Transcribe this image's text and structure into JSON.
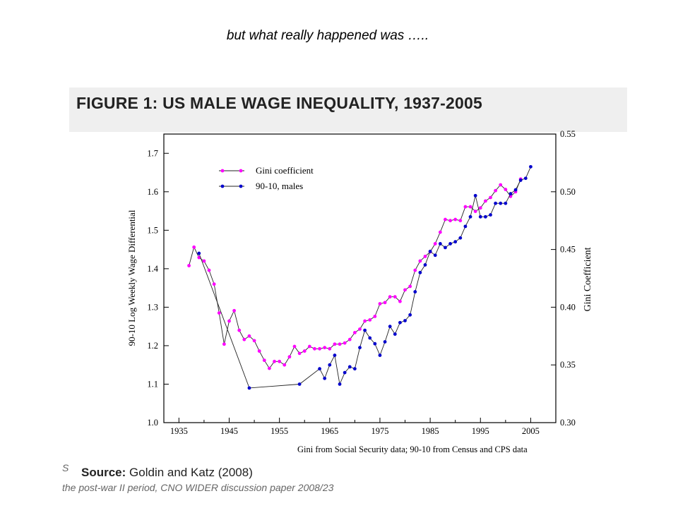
{
  "slide": {
    "title": "but what really happened was …..",
    "figure_title": "FIGURE 1: US MALE WAGE INEQUALITY, 1937-2005",
    "source_label": "Source:",
    "source_text": "Goldin and Katz (2008)",
    "background_text_1": "S",
    "background_text_2": "the post-war II period, CNO WIDER discussion paper 2008/23"
  },
  "chart_data": {
    "type": "line",
    "xlabel": "Gini from Social Security data; 90-10 from Census and CPS data",
    "ylabel_left": "90-10 Log Weekly Wage Differential",
    "ylabel_right": "Gini Coefficient",
    "xlim": [
      1932,
      2010
    ],
    "ylim_left": [
      1.0,
      1.75
    ],
    "ylim_right": [
      0.3,
      0.55
    ],
    "x_ticks": [
      1935,
      1945,
      1955,
      1965,
      1975,
      1985,
      1995,
      2005
    ],
    "y_ticks_left": [
      1.0,
      1.1,
      1.2,
      1.3,
      1.4,
      1.5,
      1.6,
      1.7
    ],
    "y_ticks_right": [
      0.3,
      0.35,
      0.4,
      0.45,
      0.5,
      0.55
    ],
    "legend_position": "top-left",
    "series": [
      {
        "name": "Gini coefficient",
        "axis": "right",
        "color": "#ff00ff",
        "x": [
          1937,
          1938,
          1939,
          1940,
          1941,
          1942,
          1943,
          1944,
          1945,
          1946,
          1947,
          1948,
          1949,
          1950,
          1951,
          1952,
          1953,
          1954,
          1955,
          1956,
          1957,
          1958,
          1959,
          1960,
          1961,
          1962,
          1963,
          1964,
          1965,
          1966,
          1967,
          1968,
          1969,
          1970,
          1971,
          1972,
          1973,
          1974,
          1975,
          1976,
          1977,
          1978,
          1979,
          1980,
          1981,
          1982,
          1983,
          1984,
          1985,
          1986,
          1987,
          1988,
          1989,
          1990,
          1991,
          1992,
          1993,
          1994,
          1995,
          1996,
          1997,
          1998,
          1999,
          2000,
          2001,
          2002,
          2003
        ],
        "values": [
          0.436,
          0.452,
          0.443,
          0.44,
          0.432,
          0.42,
          0.395,
          0.368,
          0.388,
          0.397,
          0.38,
          0.372,
          0.375,
          0.371,
          0.362,
          0.354,
          0.347,
          0.353,
          0.353,
          0.35,
          0.357,
          0.366,
          0.36,
          0.362,
          0.366,
          0.364,
          0.364,
          0.365,
          0.364,
          0.368,
          0.368,
          0.369,
          0.372,
          0.378,
          0.381,
          0.388,
          0.389,
          0.392,
          0.403,
          0.404,
          0.409,
          0.409,
          0.405,
          0.415,
          0.418,
          0.432,
          0.44,
          0.444,
          0.448,
          0.455,
          0.465,
          0.476,
          0.475,
          0.476,
          0.475,
          0.487,
          0.487,
          0.483,
          0.486,
          0.492,
          0.495,
          0.501,
          0.506,
          0.502,
          0.496,
          0.5,
          0.511
        ]
      },
      {
        "name": "90-10, males",
        "axis": "left",
        "color": "#0000cc",
        "x": [
          1939,
          1949,
          1959,
          1963,
          1964,
          1965,
          1966,
          1967,
          1968,
          1969,
          1970,
          1971,
          1972,
          1973,
          1974,
          1975,
          1976,
          1977,
          1978,
          1979,
          1980,
          1981,
          1982,
          1983,
          1984,
          1985,
          1986,
          1987,
          1988,
          1989,
          1990,
          1991,
          1992,
          1993,
          1994,
          1995,
          1996,
          1997,
          1998,
          1999,
          2000,
          2001,
          2002,
          2003,
          2004,
          2005
        ],
        "values": [
          1.44,
          1.09,
          1.1,
          1.14,
          1.115,
          1.15,
          1.175,
          1.1,
          1.13,
          1.145,
          1.14,
          1.195,
          1.24,
          1.22,
          1.205,
          1.175,
          1.21,
          1.25,
          1.23,
          1.26,
          1.265,
          1.28,
          1.34,
          1.39,
          1.41,
          1.445,
          1.435,
          1.465,
          1.455,
          1.465,
          1.47,
          1.48,
          1.51,
          1.535,
          1.59,
          1.535,
          1.535,
          1.54,
          1.57,
          1.57,
          1.57,
          1.595,
          1.605,
          1.63,
          1.635,
          1.665
        ]
      }
    ]
  }
}
